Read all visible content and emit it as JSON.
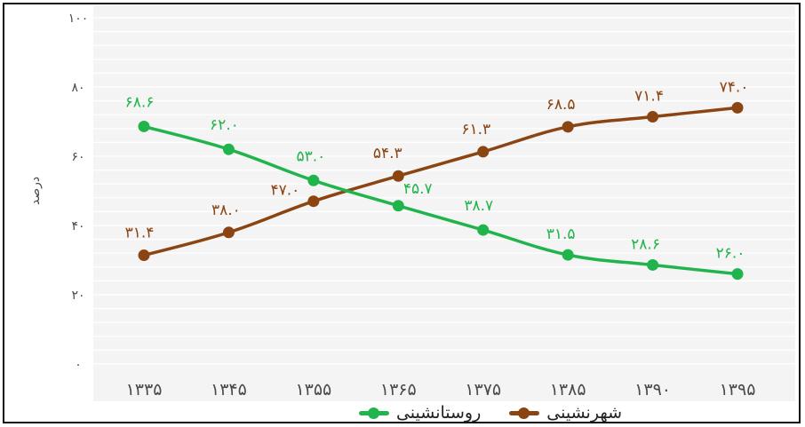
{
  "colors": {
    "urban": "#8B4513",
    "rural": "#22B44C",
    "axis_text": "#4a4a4a",
    "grid": "#ffffff"
  },
  "legend": {
    "urban_label": "شهرنشینی",
    "rural_label": "روستانشینی"
  },
  "chart_data": {
    "type": "line",
    "ylabel": "درصد",
    "xlabel": "",
    "categories": [
      "۱۳۳۵",
      "۱۳۴۵",
      "۱۳۵۵",
      "۱۳۶۵",
      "۱۳۷۵",
      "۱۳۸۵",
      "۱۳۹۰",
      "۱۳۹۵"
    ],
    "ylim": [
      0,
      100
    ],
    "yticks": [
      0,
      20,
      40,
      60,
      80,
      100
    ],
    "ytick_labels": [
      "۰",
      "۲۰",
      "۴۰",
      "۶۰",
      "۸۰",
      "۱۰۰"
    ],
    "grid": true,
    "legend_position": "bottom",
    "series": [
      {
        "name": "شهرنشینی",
        "color": "#8B4513",
        "values": [
          31.4,
          38.0,
          47.0,
          54.3,
          61.3,
          68.5,
          71.4,
          74.0
        ],
        "labels": [
          "۳۱.۴",
          "۳۸.۰",
          "۴۷.۰",
          "۵۴.۳",
          "۶۱.۳",
          "۶۸.۵",
          "۷۱.۴",
          "۷۴.۰"
        ]
      },
      {
        "name": "روستانشینی",
        "color": "#22B44C",
        "values": [
          68.6,
          62.0,
          53.0,
          45.7,
          38.7,
          31.5,
          28.6,
          26.0
        ],
        "labels": [
          "۶۸.۶",
          "۶۲.۰",
          "۵۳.۰",
          "۴۵.۷",
          "۳۸.۷",
          "۳۱.۵",
          "۲۸.۶",
          "۲۶.۰"
        ]
      }
    ]
  }
}
